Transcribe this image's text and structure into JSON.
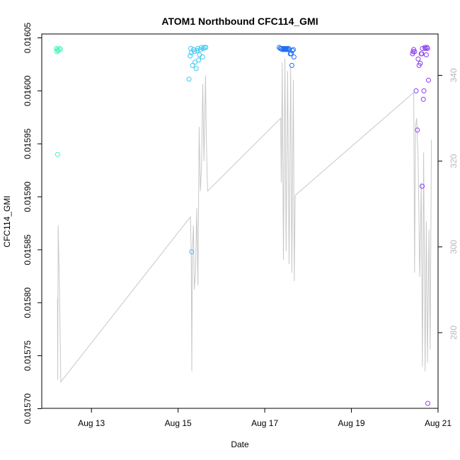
{
  "chart_data": {
    "type": "scatter",
    "title": "ATOM1 Northbound CFC114_GMI",
    "xlabel": "Date",
    "ylabel": "CFC114_GMI",
    "x_axis": {
      "range": [
        "2016-08-12T00:00",
        "2016-08-21T00:00"
      ],
      "ticks": [
        "2016-08-13",
        "2016-08-15",
        "2016-08-17",
        "2016-08-19",
        "2016-08-21"
      ],
      "tick_labels": [
        "Aug 13",
        "Aug 15",
        "Aug 17",
        "Aug 19",
        "Aug 21"
      ]
    },
    "y_axis_left": {
      "range": [
        0.015707,
        0.016047
      ],
      "ticks": [
        0.0157,
        0.01575,
        0.0158,
        0.01585,
        0.0159,
        0.01595,
        0.016,
        0.01605
      ],
      "tick_labels": [
        "0.01570",
        "0.01575",
        "0.01580",
        "0.01585",
        "0.01590",
        "0.01595",
        "0.01600",
        "0.01605"
      ]
    },
    "y_axis_right": {
      "range": [
        264,
        348
      ],
      "ticks": [
        280,
        300,
        320,
        340
      ],
      "tick_labels": [
        "280",
        "300",
        "320",
        "340"
      ],
      "color": "#b8b8b8"
    },
    "line_series": {
      "axis": "right",
      "color": "#c8c8c8",
      "points": [
        [
          "2016-08-12T05:10",
          288
        ],
        [
          "2016-08-12T05:20",
          269
        ],
        [
          "2016-08-12T05:35",
          305
        ],
        [
          "2016-08-12T06:20",
          289
        ],
        [
          "2016-08-12T07:00",
          268.5
        ],
        [
          "2016-08-15T06:50",
          307
        ],
        [
          "2016-08-15T07:15",
          299
        ],
        [
          "2016-08-15T07:35",
          271
        ],
        [
          "2016-08-15T07:55",
          299
        ],
        [
          "2016-08-15T08:30",
          305
        ],
        [
          "2016-08-15T09:00",
          290
        ],
        [
          "2016-08-15T09:40",
          294
        ],
        [
          "2016-08-15T10:20",
          309
        ],
        [
          "2016-08-15T11:00",
          291
        ],
        [
          "2016-08-15T11:40",
          328
        ],
        [
          "2016-08-15T12:20",
          313
        ],
        [
          "2016-08-15T13:00",
          319
        ],
        [
          "2016-08-15T13:40",
          338
        ],
        [
          "2016-08-15T14:20",
          320
        ],
        [
          "2016-08-15T15:10",
          340
        ],
        [
          "2016-08-15T15:40",
          325
        ],
        [
          "2016-08-15T16:20",
          313
        ],
        [
          "2016-08-17T08:50",
          330
        ],
        [
          "2016-08-17T09:10",
          315
        ],
        [
          "2016-08-17T09:40",
          343
        ],
        [
          "2016-08-17T10:20",
          297
        ],
        [
          "2016-08-17T11:10",
          344
        ],
        [
          "2016-08-17T11:50",
          299
        ],
        [
          "2016-08-17T12:40",
          341
        ],
        [
          "2016-08-17T13:30",
          296
        ],
        [
          "2016-08-17T14:20",
          342
        ],
        [
          "2016-08-17T15:00",
          294
        ],
        [
          "2016-08-17T15:50",
          339
        ],
        [
          "2016-08-17T16:20",
          292
        ],
        [
          "2016-08-17T16:50",
          312
        ],
        [
          "2016-08-20T10:30",
          336
        ],
        [
          "2016-08-20T11:00",
          294
        ],
        [
          "2016-08-20T11:30",
          328
        ],
        [
          "2016-08-20T12:10",
          330
        ],
        [
          "2016-08-20T13:00",
          320
        ],
        [
          "2016-08-20T13:50",
          293
        ],
        [
          "2016-08-20T14:40",
          315
        ],
        [
          "2016-08-20T15:20",
          272
        ],
        [
          "2016-08-20T16:00",
          322
        ],
        [
          "2016-08-20T16:50",
          271
        ],
        [
          "2016-08-20T17:30",
          306
        ],
        [
          "2016-08-20T18:10",
          273
        ],
        [
          "2016-08-20T19:00",
          304
        ],
        [
          "2016-08-20T19:40",
          276
        ],
        [
          "2016-08-20T20:20",
          325
        ]
      ]
    },
    "series": [
      {
        "color": "#3ff7b6",
        "points": [
          [
            "2016-08-12T04:30",
            0.01604
          ],
          [
            "2016-08-12T04:50",
            0.016037
          ],
          [
            "2016-08-12T05:10",
            0.016039
          ],
          [
            "2016-08-12T05:30",
            0.016038
          ],
          [
            "2016-08-12T06:20",
            0.01604
          ],
          [
            "2016-08-12T06:50",
            0.016039
          ],
          [
            "2016-08-12T05:15",
            0.01594
          ]
        ]
      },
      {
        "color": "#3ec7f2",
        "points": [
          [
            "2016-08-15T06:00",
            0.016011
          ],
          [
            "2016-08-15T06:40",
            0.016033
          ],
          [
            "2016-08-15T07:00",
            0.01604
          ],
          [
            "2016-08-15T07:20",
            0.016036
          ],
          [
            "2016-08-15T08:00",
            0.016024
          ],
          [
            "2016-08-15T08:30",
            0.016039
          ],
          [
            "2016-08-15T09:00",
            0.016037
          ],
          [
            "2016-08-15T09:20",
            0.016027
          ],
          [
            "2016-08-15T10:00",
            0.016021
          ],
          [
            "2016-08-15T10:30",
            0.016038
          ],
          [
            "2016-08-15T11:00",
            0.01604
          ],
          [
            "2016-08-15T11:20",
            0.016029
          ],
          [
            "2016-08-15T11:50",
            0.016034
          ],
          [
            "2016-08-15T12:20",
            0.016039
          ],
          [
            "2016-08-15T13:00",
            0.016041
          ],
          [
            "2016-08-15T13:30",
            0.016032
          ],
          [
            "2016-08-15T14:00",
            0.01604
          ],
          [
            "2016-08-15T14:40",
            0.016041
          ],
          [
            "2016-08-15T15:20",
            0.016041
          ],
          [
            "2016-08-15T07:30",
            0.015848
          ]
        ]
      },
      {
        "color": "#1f6ff0",
        "points": [
          [
            "2016-08-17T08:00",
            0.016041
          ],
          [
            "2016-08-17T08:40",
            0.01604
          ],
          [
            "2016-08-17T09:10",
            0.01604
          ],
          [
            "2016-08-17T09:40",
            0.016039
          ],
          [
            "2016-08-17T10:10",
            0.01604
          ],
          [
            "2016-08-17T10:40",
            0.016039
          ],
          [
            "2016-08-17T11:10",
            0.01604
          ],
          [
            "2016-08-17T11:40",
            0.016039
          ],
          [
            "2016-08-17T12:10",
            0.01604
          ],
          [
            "2016-08-17T12:40",
            0.016039
          ],
          [
            "2016-08-17T13:10",
            0.01604
          ],
          [
            "2016-08-17T13:40",
            0.016039
          ],
          [
            "2016-08-17T14:10",
            0.016035
          ],
          [
            "2016-08-17T14:40",
            0.016035
          ],
          [
            "2016-08-17T15:00",
            0.016024
          ],
          [
            "2016-08-17T15:20",
            0.016038
          ],
          [
            "2016-08-17T15:50",
            0.016039
          ],
          [
            "2016-08-17T16:10",
            0.016032
          ]
        ]
      },
      {
        "color": "#8a3ff0",
        "points": [
          [
            "2016-08-20T09:50",
            0.016035
          ],
          [
            "2016-08-20T10:10",
            0.016037
          ],
          [
            "2016-08-20T10:30",
            0.016039
          ],
          [
            "2016-08-20T11:00",
            0.016037
          ],
          [
            "2016-08-20T11:50",
            0.016
          ],
          [
            "2016-08-20T12:30",
            0.015963
          ],
          [
            "2016-08-20T13:00",
            0.01603
          ],
          [
            "2016-08-20T13:30",
            0.016024
          ],
          [
            "2016-08-20T14:10",
            0.016026
          ],
          [
            "2016-08-20T14:40",
            0.016035
          ],
          [
            "2016-08-20T15:00",
            0.016035
          ],
          [
            "2016-08-20T15:20",
            0.01604
          ],
          [
            "2016-08-20T15:50",
            0.015992
          ],
          [
            "2016-08-20T16:10",
            0.016
          ],
          [
            "2016-08-20T17:00",
            0.01604
          ],
          [
            "2016-08-20T17:30",
            0.016034
          ],
          [
            "2016-08-20T18:10",
            0.01604
          ],
          [
            "2016-08-20T18:40",
            0.01601
          ],
          [
            "2016-08-20T15:10",
            0.01591
          ],
          [
            "2016-08-20T18:20",
            0.015705
          ],
          [
            "2016-08-20T16:40",
            0.016041
          ],
          [
            "2016-08-20T17:50",
            0.016041
          ]
        ]
      }
    ]
  }
}
